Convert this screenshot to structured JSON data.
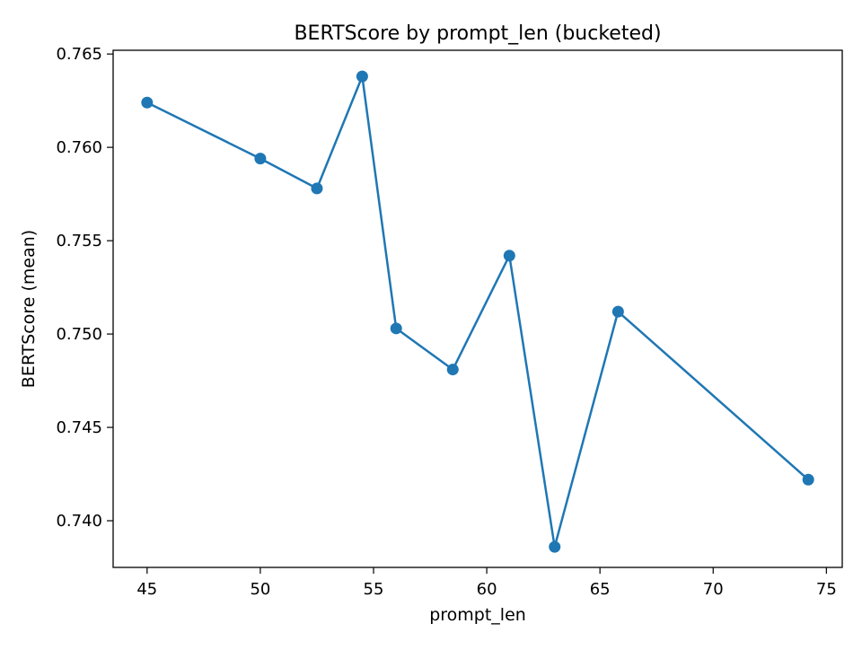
{
  "chart_data": {
    "type": "line",
    "title": "BERTScore by prompt_len (bucketed)",
    "xlabel": "prompt_len",
    "ylabel": "BERTScore (mean)",
    "xlim": [
      43.5,
      75.7
    ],
    "ylim": [
      0.7375,
      0.7652
    ],
    "xticks": [
      45,
      50,
      55,
      60,
      65,
      70,
      75
    ],
    "yticks": [
      0.74,
      0.745,
      0.75,
      0.755,
      0.76,
      0.765
    ],
    "grid": false,
    "legend": "none",
    "color": "#1f77b4",
    "series": [
      {
        "x": [
          45.0,
          50.0,
          52.5,
          54.5,
          56.0,
          58.5,
          61.0,
          63.0,
          65.8,
          74.2
        ],
        "y": [
          0.7624,
          0.7594,
          0.7578,
          0.7638,
          0.7503,
          0.7481,
          0.7542,
          0.7386,
          0.7512,
          0.7422
        ]
      }
    ]
  }
}
